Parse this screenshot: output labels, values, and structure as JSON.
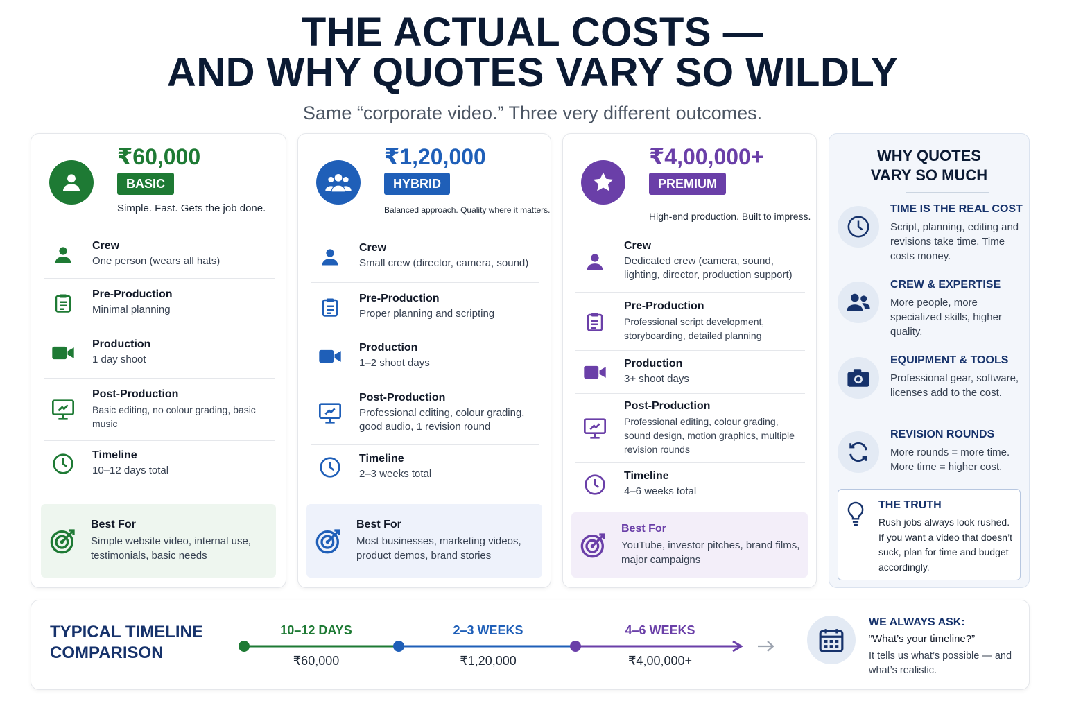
{
  "header": {
    "title_line1": "THE ACTUAL COSTS —",
    "title_line2": "AND WHY QUOTES VARY SO WILDLY",
    "subtitle": "Same “corporate video.” Three very different outcomes."
  },
  "tiers": [
    {
      "price": "₹60,000",
      "tier": "BASIC",
      "tagline": "Simple. Fast. Gets the job done.",
      "color": "#1e7a34",
      "rows": [
        {
          "label": "Crew",
          "value": "One person (wears all hats)"
        },
        {
          "label": "Pre-Production",
          "value": "Minimal planning"
        },
        {
          "label": "Production",
          "value": "1 day shoot"
        },
        {
          "label": "Post-Production",
          "value": "Basic editing, no colour grading, basic music"
        },
        {
          "label": "Timeline",
          "value": "10–12 days total"
        }
      ],
      "best_for_label": "Best For",
      "best_for": "Simple website video, internal use, testimonials, basic needs"
    },
    {
      "price": "₹1,20,000",
      "tier": "HYBRID",
      "tagline": "Balanced approach. Quality where it matters.",
      "color": "#1f5fb8",
      "rows": [
        {
          "label": "Crew",
          "value": "Small crew (director, camera, sound)"
        },
        {
          "label": "Pre-Production",
          "value": "Proper planning and scripting"
        },
        {
          "label": "Production",
          "value": "1–2 shoot days"
        },
        {
          "label": "Post-Production",
          "value": "Professional editing, colour grading, good audio, 1 revision round"
        },
        {
          "label": "Timeline",
          "value": "2–3 weeks total"
        }
      ],
      "best_for_label": "Best For",
      "best_for": "Most businesses, marketing videos, product demos, brand stories"
    },
    {
      "price": "₹4,00,000+",
      "tier": "PREMIUM",
      "tagline": "High-end production. Built to impress.",
      "color": "#6a3fa8",
      "rows": [
        {
          "label": "Crew",
          "value": "Dedicated crew (camera, sound, lighting, director, production support)"
        },
        {
          "label": "Pre-Production",
          "value": "Professional script development, storyboarding, detailed planning"
        },
        {
          "label": "Production",
          "value": "3+ shoot days"
        },
        {
          "label": "Post-Production",
          "value": "Professional editing, colour grading, sound design, motion graphics, multiple revision rounds"
        },
        {
          "label": "Timeline",
          "value": "4–6 weeks total"
        }
      ],
      "best_for_label": "Best For",
      "best_for": "YouTube, investor pitches, brand films, major campaigns"
    }
  ],
  "why": {
    "title_line1": "WHY QUOTES",
    "title_line2": "VARY SO MUCH",
    "items": [
      {
        "icon": "clock-icon",
        "title": "TIME IS THE REAL COST",
        "desc": "Script, planning, editing and revisions take time. Time costs money."
      },
      {
        "icon": "people-icon",
        "title": "CREW & EXPERTISE",
        "desc": "More people, more specialized skills, higher quality."
      },
      {
        "icon": "camera-icon",
        "title": "EQUIPMENT & TOOLS",
        "desc": "Professional gear, software, licenses add to the cost."
      },
      {
        "icon": "refresh-icon",
        "title": "REVISION ROUNDS",
        "desc": "More rounds = more time. More time = higher cost."
      }
    ],
    "truth_title": "THE TRUTH",
    "truth_desc": "Rush jobs always look rushed. If you want a video that doesn’t suck, plan for time and budget accordingly."
  },
  "timeline": {
    "title_line1": "TYPICAL TIMELINE",
    "title_line2": "COMPARISON",
    "points": [
      {
        "label": "10–12 DAYS",
        "price": "₹60,000",
        "color": "#1e7a34"
      },
      {
        "label": "2–3 WEEKS",
        "price": "₹1,20,000",
        "color": "#1f5fb8"
      },
      {
        "label": "4–6 WEEKS",
        "price": "₹4,00,000+",
        "color": "#6a3fa8"
      }
    ],
    "ask_title": "WE ALWAYS ASK:",
    "ask_question": "“What’s your timeline?”",
    "ask_desc": "It tells us what’s possible — and what’s realistic."
  }
}
